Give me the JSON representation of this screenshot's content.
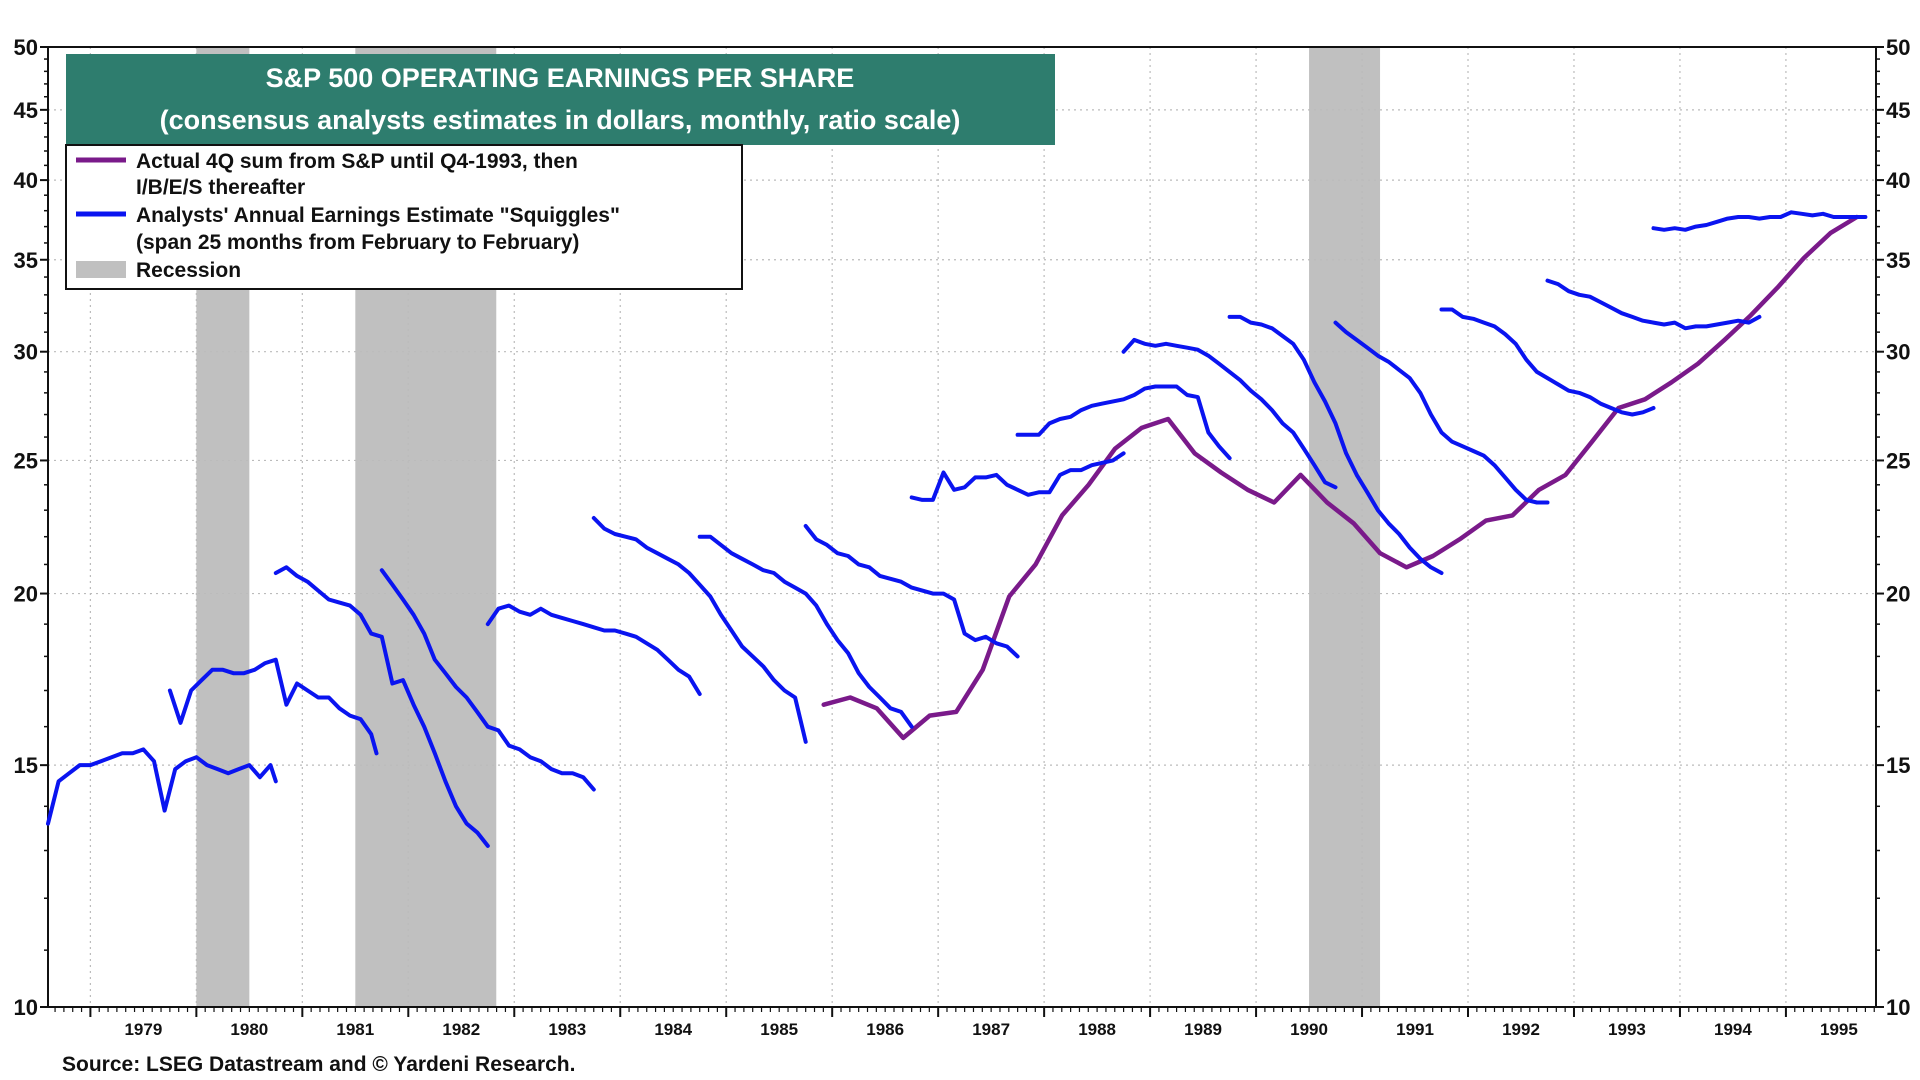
{
  "chart_data": {
    "type": "line",
    "title": "S&P 500 OPERATING EARNINGS PER SHARE",
    "subtitle": "(consensus analysts estimates in dollars, monthly, ratio scale)",
    "y_scale": "log",
    "ylim": [
      10,
      50
    ],
    "xlim": [
      1978.6,
      1995.85
    ],
    "y_ticks": [
      10,
      15,
      20,
      25,
      30,
      35,
      40,
      45,
      50
    ],
    "x_ticks": [
      "1979",
      "1980",
      "1981",
      "1982",
      "1983",
      "1984",
      "1985",
      "1986",
      "1987",
      "1988",
      "1989",
      "1990",
      "1991",
      "1992",
      "1993",
      "1994",
      "1995"
    ],
    "grid": true,
    "legend_placement": "top-left",
    "legend": [
      {
        "label": "Actual 4Q sum from S&P until Q4-1993, then",
        "label2": "I/B/E/S thereafter",
        "color": "#7a1a8a",
        "kind": "line"
      },
      {
        "label": "Analysts' Annual Earnings Estimate \"Squiggles\"",
        "label2": "(span 25 months from February to February)",
        "color": "#0a14f0",
        "kind": "line"
      },
      {
        "label": "Recession",
        "label2": "",
        "color": "#c0c0c0",
        "kind": "box"
      }
    ],
    "colors": {
      "title_bg": "#2e7d6e",
      "actual": "#7a1a8a",
      "squiggle": "#0a14f0",
      "recession": "#c0c0c0",
      "grid": "#bbbbbb"
    },
    "recessions": [
      [
        1980.0,
        1980.5
      ],
      [
        1981.5,
        1982.83
      ],
      [
        1990.5,
        1991.17
      ]
    ],
    "series": [
      {
        "name": "Actual 4Q sum from S&P until Q4-1993, then I/B/E/S thereafter",
        "kind": "actual",
        "color": "#7a1a8a",
        "x": [
          1985.92,
          1986.17,
          1986.42,
          1986.67,
          1986.92,
          1987.17,
          1987.42,
          1987.67,
          1987.92,
          1988.17,
          1988.42,
          1988.67,
          1988.92,
          1989.17,
          1989.42,
          1989.67,
          1989.92,
          1990.17,
          1990.42,
          1990.67,
          1990.92,
          1991.17,
          1991.42,
          1991.67,
          1991.92,
          1992.17,
          1992.42,
          1992.67,
          1992.92,
          1993.17,
          1993.42,
          1993.67,
          1993.92,
          1994.17,
          1994.42,
          1994.67,
          1994.92,
          1995.17,
          1995.42,
          1995.67
        ],
        "y": [
          16.6,
          16.8,
          16.5,
          15.7,
          16.3,
          16.4,
          17.6,
          19.9,
          21.0,
          22.8,
          24.0,
          25.5,
          26.4,
          26.8,
          25.3,
          24.5,
          23.8,
          23.3,
          24.4,
          23.3,
          22.5,
          21.4,
          20.9,
          21.3,
          21.9,
          22.6,
          22.8,
          23.8,
          24.4,
          25.8,
          27.3,
          27.7,
          28.5,
          29.4,
          30.6,
          31.9,
          33.4,
          35.1,
          36.6,
          37.6
        ]
      },
      {
        "name": "1979",
        "kind": "squiggle",
        "color": "#0a14f0",
        "x": [
          1978.6,
          1978.7,
          1978.8,
          1978.9,
          1979.0,
          1979.1,
          1979.2,
          1979.3,
          1979.4,
          1979.5,
          1979.6,
          1979.7,
          1979.8,
          1979.9,
          1980.0,
          1980.1,
          1980.2,
          1980.3,
          1980.4,
          1980.5,
          1980.6,
          1980.7,
          1980.75
        ],
        "y": [
          13.6,
          14.6,
          14.8,
          15.0,
          15.0,
          15.1,
          15.2,
          15.3,
          15.3,
          15.4,
          15.1,
          13.9,
          14.9,
          15.1,
          15.2,
          15.0,
          14.9,
          14.8,
          14.9,
          15.0,
          14.7,
          15.0,
          14.6
        ]
      },
      {
        "name": "1980",
        "kind": "squiggle",
        "color": "#0a14f0",
        "x": [
          1979.75,
          1979.85,
          1979.95,
          1980.05,
          1980.15,
          1980.25,
          1980.35,
          1980.45,
          1980.55,
          1980.65,
          1980.75,
          1980.85,
          1980.95,
          1981.05,
          1981.15,
          1981.25,
          1981.35,
          1981.45,
          1981.55,
          1981.65,
          1981.7
        ],
        "y": [
          17.0,
          16.1,
          17.0,
          17.3,
          17.6,
          17.6,
          17.5,
          17.5,
          17.6,
          17.8,
          17.9,
          16.6,
          17.2,
          17.0,
          16.8,
          16.8,
          16.5,
          16.3,
          16.2,
          15.8,
          15.3
        ]
      },
      {
        "name": "1981",
        "kind": "squiggle",
        "color": "#0a14f0",
        "x": [
          1980.75,
          1980.85,
          1980.95,
          1981.05,
          1981.15,
          1981.25,
          1981.35,
          1981.45,
          1981.55,
          1981.65,
          1981.75,
          1981.85,
          1981.95,
          1982.05,
          1982.15,
          1982.25,
          1982.35,
          1982.45,
          1982.55,
          1982.65,
          1982.75
        ],
        "y": [
          20.7,
          20.9,
          20.6,
          20.4,
          20.1,
          19.8,
          19.7,
          19.6,
          19.3,
          18.7,
          18.6,
          17.2,
          17.3,
          16.6,
          16.0,
          15.3,
          14.6,
          14.0,
          13.6,
          13.4,
          13.1
        ]
      },
      {
        "name": "1982",
        "kind": "squiggle",
        "color": "#0a14f0",
        "x": [
          1981.75,
          1981.85,
          1981.95,
          1982.05,
          1982.15,
          1982.25,
          1982.35,
          1982.45,
          1982.55,
          1982.65,
          1982.75,
          1982.85,
          1982.95,
          1983.05,
          1983.15,
          1983.25,
          1983.35,
          1983.45,
          1983.55,
          1983.65,
          1983.75
        ],
        "y": [
          20.8,
          20.3,
          19.8,
          19.3,
          18.7,
          17.9,
          17.5,
          17.1,
          16.8,
          16.4,
          16.0,
          15.9,
          15.5,
          15.4,
          15.2,
          15.1,
          14.9,
          14.8,
          14.8,
          14.7,
          14.4
        ]
      },
      {
        "name": "1983",
        "kind": "squiggle",
        "color": "#0a14f0",
        "x": [
          1982.75,
          1982.85,
          1982.95,
          1983.05,
          1983.15,
          1983.25,
          1983.35,
          1983.45,
          1983.55,
          1983.65,
          1983.75,
          1983.85,
          1983.95,
          1984.05,
          1984.15,
          1984.25,
          1984.35,
          1984.45,
          1984.55,
          1984.65,
          1984.75
        ],
        "y": [
          19.0,
          19.5,
          19.6,
          19.4,
          19.3,
          19.5,
          19.3,
          19.2,
          19.1,
          19.0,
          18.9,
          18.8,
          18.8,
          18.7,
          18.6,
          18.4,
          18.2,
          17.9,
          17.6,
          17.4,
          16.9
        ]
      },
      {
        "name": "1984",
        "kind": "squiggle",
        "color": "#0a14f0",
        "x": [
          1983.75,
          1983.85,
          1983.95,
          1984.05,
          1984.15,
          1984.25,
          1984.35,
          1984.45,
          1984.55,
          1984.65,
          1984.75,
          1984.85,
          1984.95,
          1985.05,
          1985.15,
          1985.25,
          1985.35,
          1985.45,
          1985.55,
          1985.65,
          1985.75
        ],
        "y": [
          22.7,
          22.3,
          22.1,
          22.0,
          21.9,
          21.6,
          21.4,
          21.2,
          21.0,
          20.7,
          20.3,
          19.9,
          19.3,
          18.8,
          18.3,
          18.0,
          17.7,
          17.3,
          17.0,
          16.8,
          15.6
        ]
      },
      {
        "name": "1985",
        "kind": "squiggle",
        "color": "#0a14f0",
        "x": [
          1984.75,
          1984.85,
          1984.95,
          1985.05,
          1985.15,
          1985.25,
          1985.35,
          1985.45,
          1985.55,
          1985.65,
          1985.75,
          1985.85,
          1985.95,
          1986.05,
          1986.15,
          1986.25,
          1986.35,
          1986.45,
          1986.55,
          1986.65,
          1986.75
        ],
        "y": [
          22.0,
          22.0,
          21.7,
          21.4,
          21.2,
          21.0,
          20.8,
          20.7,
          20.4,
          20.2,
          20.0,
          19.6,
          19.0,
          18.5,
          18.1,
          17.5,
          17.1,
          16.8,
          16.5,
          16.4,
          16.0
        ]
      },
      {
        "name": "1986",
        "kind": "squiggle",
        "color": "#0a14f0",
        "x": [
          1985.75,
          1985.85,
          1985.95,
          1986.05,
          1986.15,
          1986.25,
          1986.35,
          1986.45,
          1986.55,
          1986.65,
          1986.75,
          1986.85,
          1986.95,
          1987.05,
          1987.15,
          1987.25,
          1987.35,
          1987.45,
          1987.55,
          1987.65,
          1987.75
        ],
        "y": [
          22.4,
          21.9,
          21.7,
          21.4,
          21.3,
          21.0,
          20.9,
          20.6,
          20.5,
          20.4,
          20.2,
          20.1,
          20.0,
          20.0,
          19.8,
          18.7,
          18.5,
          18.6,
          18.4,
          18.3,
          18.0
        ]
      },
      {
        "name": "1987",
        "kind": "squiggle",
        "color": "#0a14f0",
        "x": [
          1986.75,
          1986.85,
          1986.95,
          1987.05,
          1987.15,
          1987.25,
          1987.35,
          1987.45,
          1987.55,
          1987.65,
          1987.75,
          1987.85,
          1987.95,
          1988.05,
          1988.15,
          1988.25,
          1988.35,
          1988.45,
          1988.55,
          1988.65,
          1988.75
        ],
        "y": [
          23.5,
          23.4,
          23.4,
          24.5,
          23.8,
          23.9,
          24.3,
          24.3,
          24.4,
          24.0,
          23.8,
          23.6,
          23.7,
          23.7,
          24.4,
          24.6,
          24.6,
          24.8,
          24.9,
          25.0,
          25.3
        ]
      },
      {
        "name": "1988",
        "kind": "squiggle",
        "color": "#0a14f0",
        "x": [
          1987.75,
          1987.85,
          1987.95,
          1988.05,
          1988.15,
          1988.25,
          1988.35,
          1988.45,
          1988.55,
          1988.65,
          1988.75,
          1988.85,
          1988.95,
          1989.05,
          1989.15,
          1989.25,
          1989.35,
          1989.45,
          1989.55,
          1989.65,
          1989.75
        ],
        "y": [
          26.1,
          26.1,
          26.1,
          26.6,
          26.8,
          26.9,
          27.2,
          27.4,
          27.5,
          27.6,
          27.7,
          27.9,
          28.2,
          28.3,
          28.3,
          28.3,
          27.9,
          27.8,
          26.2,
          25.6,
          25.1
        ]
      },
      {
        "name": "1989",
        "kind": "squiggle",
        "color": "#0a14f0",
        "x": [
          1988.75,
          1988.85,
          1988.95,
          1989.05,
          1989.15,
          1989.25,
          1989.35,
          1989.45,
          1989.55,
          1989.65,
          1989.75,
          1989.85,
          1989.95,
          1990.05,
          1990.15,
          1990.25,
          1990.35,
          1990.45,
          1990.55,
          1990.65,
          1990.75
        ],
        "y": [
          30.0,
          30.6,
          30.4,
          30.3,
          30.4,
          30.3,
          30.2,
          30.1,
          29.8,
          29.4,
          29.0,
          28.6,
          28.1,
          27.7,
          27.2,
          26.6,
          26.2,
          25.5,
          24.8,
          24.1,
          23.9
        ]
      },
      {
        "name": "1990",
        "kind": "squiggle",
        "color": "#0a14f0",
        "x": [
          1989.75,
          1989.85,
          1989.95,
          1990.05,
          1990.15,
          1990.25,
          1990.35,
          1990.45,
          1990.55,
          1990.65,
          1990.75,
          1990.85,
          1990.95,
          1991.05,
          1991.15,
          1991.25,
          1991.35,
          1991.45,
          1991.55,
          1991.65,
          1991.75
        ],
        "y": [
          31.8,
          31.8,
          31.5,
          31.4,
          31.2,
          30.8,
          30.4,
          29.6,
          28.5,
          27.6,
          26.6,
          25.3,
          24.4,
          23.7,
          23.0,
          22.5,
          22.1,
          21.6,
          21.2,
          20.9,
          20.7
        ]
      },
      {
        "name": "1991",
        "kind": "squiggle",
        "color": "#0a14f0",
        "x": [
          1990.75,
          1990.85,
          1990.95,
          1991.05,
          1991.15,
          1991.25,
          1991.35,
          1991.45,
          1991.55,
          1991.65,
          1991.75,
          1991.85,
          1991.95,
          1992.05,
          1992.15,
          1992.25,
          1992.35,
          1992.45,
          1992.55,
          1992.65,
          1992.75
        ],
        "y": [
          31.5,
          31.0,
          30.6,
          30.2,
          29.8,
          29.5,
          29.1,
          28.7,
          28.0,
          27.0,
          26.2,
          25.8,
          25.6,
          25.4,
          25.2,
          24.8,
          24.3,
          23.8,
          23.4,
          23.3,
          23.3
        ]
      },
      {
        "name": "1992",
        "kind": "squiggle",
        "color": "#0a14f0",
        "x": [
          1991.75,
          1991.85,
          1991.95,
          1992.05,
          1992.15,
          1992.25,
          1992.35,
          1992.45,
          1992.55,
          1992.65,
          1992.75,
          1992.85,
          1992.95,
          1993.05,
          1993.15,
          1993.25,
          1993.35,
          1993.45,
          1993.55,
          1993.65,
          1993.75
        ],
        "y": [
          32.2,
          32.2,
          31.8,
          31.7,
          31.5,
          31.3,
          30.9,
          30.4,
          29.6,
          29.0,
          28.7,
          28.4,
          28.1,
          28.0,
          27.8,
          27.5,
          27.3,
          27.1,
          27.0,
          27.1,
          27.3
        ]
      },
      {
        "name": "1993",
        "kind": "squiggle",
        "color": "#0a14f0",
        "x": [
          1992.75,
          1992.85,
          1992.95,
          1993.05,
          1993.15,
          1993.25,
          1993.35,
          1993.45,
          1993.55,
          1993.65,
          1993.75,
          1993.85,
          1993.95,
          1994.05,
          1994.15,
          1994.25,
          1994.35,
          1994.45,
          1994.55,
          1994.65,
          1994.75
        ],
        "y": [
          33.8,
          33.6,
          33.2,
          33.0,
          32.9,
          32.6,
          32.3,
          32.0,
          31.8,
          31.6,
          31.5,
          31.4,
          31.5,
          31.2,
          31.3,
          31.3,
          31.4,
          31.5,
          31.6,
          31.5,
          31.8
        ]
      },
      {
        "name": "1994",
        "kind": "squiggle",
        "color": "#0a14f0",
        "x": [
          1993.75,
          1993.85,
          1993.95,
          1994.05,
          1994.15,
          1994.25,
          1994.35,
          1994.45,
          1994.55,
          1994.65,
          1994.75,
          1994.85,
          1994.95,
          1995.05,
          1995.15,
          1995.25,
          1995.35,
          1995.45,
          1995.55,
          1995.65,
          1995.75
        ],
        "y": [
          36.9,
          36.8,
          36.9,
          36.8,
          37.0,
          37.1,
          37.3,
          37.5,
          37.6,
          37.6,
          37.5,
          37.6,
          37.6,
          37.9,
          37.8,
          37.7,
          37.8,
          37.6,
          37.6,
          37.6,
          37.6
        ]
      }
    ],
    "source": "Source: LSEG Datastream and © Yardeni Research."
  }
}
